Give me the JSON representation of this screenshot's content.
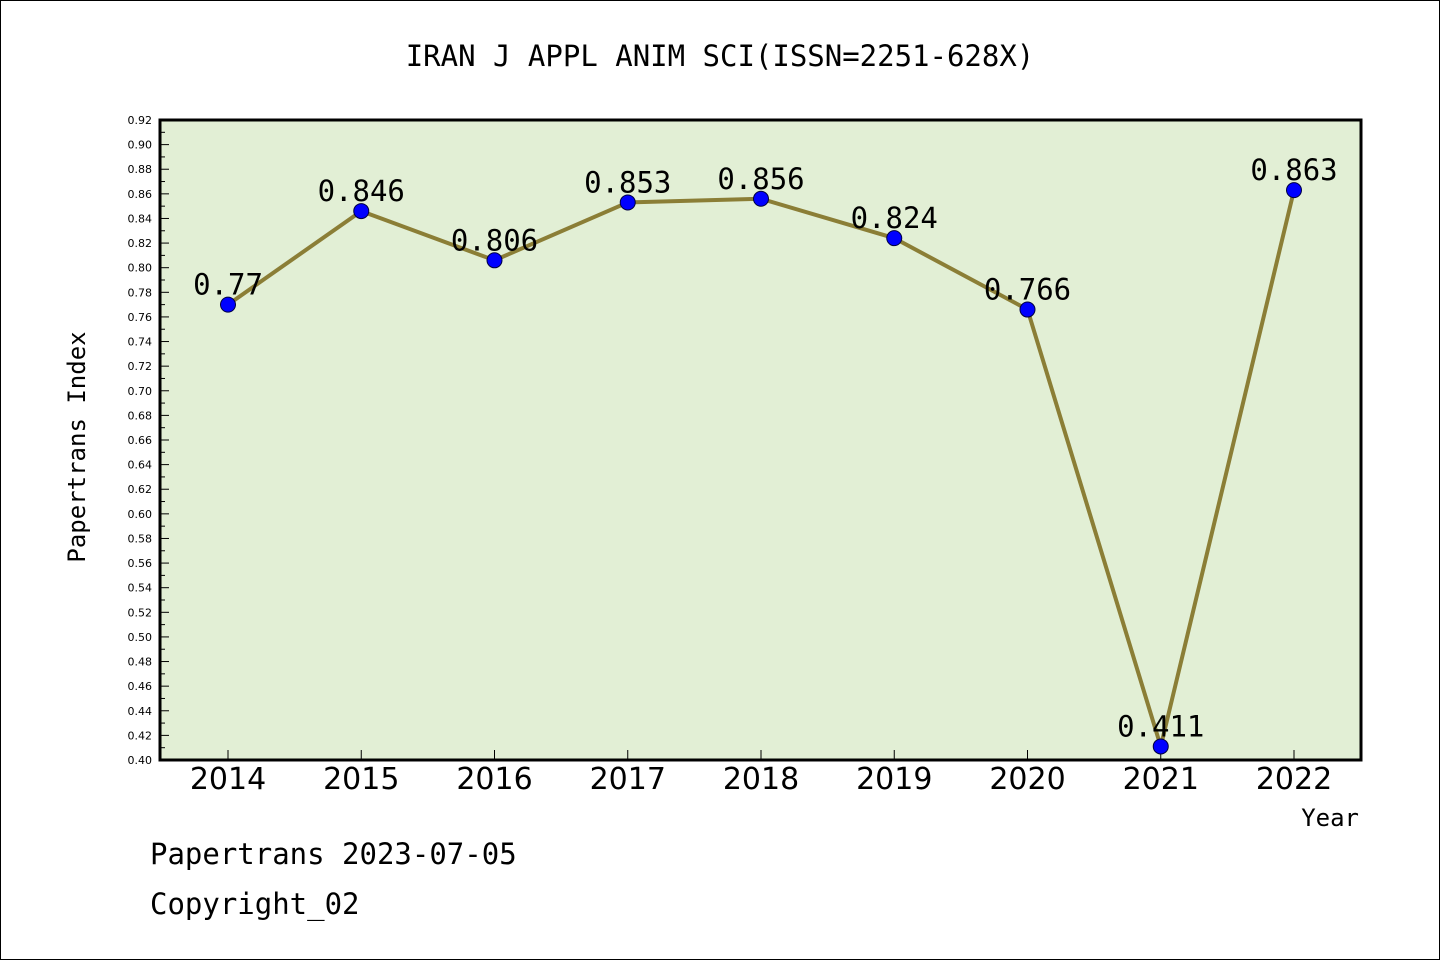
{
  "chart_data": {
    "type": "line",
    "title": "IRAN J APPL ANIM SCI(ISSN=2251-628X)",
    "xlabel": "Year",
    "ylabel": "Papertrans Index",
    "categories": [
      "2014",
      "2015",
      "2016",
      "2017",
      "2018",
      "2019",
      "2020",
      "2021",
      "2022"
    ],
    "series": [
      {
        "values": [
          0.77,
          0.846,
          0.806,
          0.853,
          0.856,
          0.824,
          0.766,
          0.411,
          0.863
        ],
        "labels": [
          "0.77",
          "0.846",
          "0.806",
          "0.853",
          "0.856",
          "0.824",
          "0.766",
          "0.411",
          "0.863"
        ]
      }
    ],
    "ylim": [
      0.4,
      0.92
    ],
    "ytick_step": 0.02,
    "ytick_decimals": 2,
    "grid": false,
    "colors": {
      "plot_background": "#e2efd5",
      "line": "#8b7e36",
      "marker": "#0000ff"
    }
  },
  "footer": {
    "stamp": "Papertrans 2023-07-05",
    "copyright": "Copyright_02"
  }
}
